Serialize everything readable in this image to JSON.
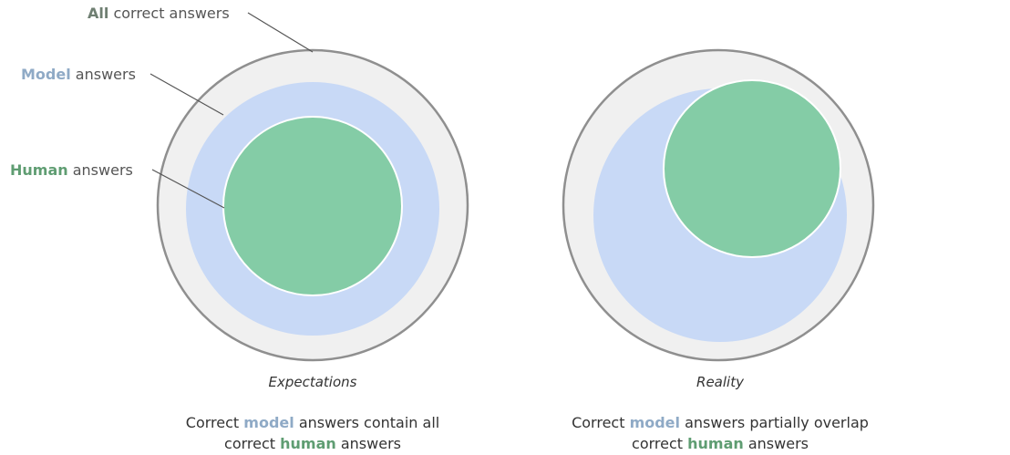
{
  "colors": {
    "all_fill": "#f0f0f0",
    "all_stroke": "#8f8f8f",
    "model_fill": "#c8d9f6",
    "human_fill": "#84cca6",
    "all_text": "#6f7f72",
    "model_text": "#8faac6",
    "human_text": "#5f9d72",
    "leader_line": "#555555"
  },
  "legend": {
    "all": {
      "keyword": "All",
      "rest": " correct answers"
    },
    "model": {
      "keyword": "Model",
      "rest": " answers"
    },
    "human": {
      "keyword": "Human",
      "rest": " answers"
    }
  },
  "panels": [
    {
      "caption": "Expectations",
      "line1": {
        "pre": "Correct ",
        "keyword": "model",
        "post": " answers contain all"
      },
      "line2": {
        "pre": "correct ",
        "keyword": "human",
        "post": " answers"
      }
    },
    {
      "caption": "Reality",
      "line1": {
        "pre": "Correct ",
        "keyword": "model",
        "post": " answers partially overlap"
      },
      "line2": {
        "pre": "correct ",
        "keyword": "human",
        "post": " answers"
      }
    }
  ]
}
